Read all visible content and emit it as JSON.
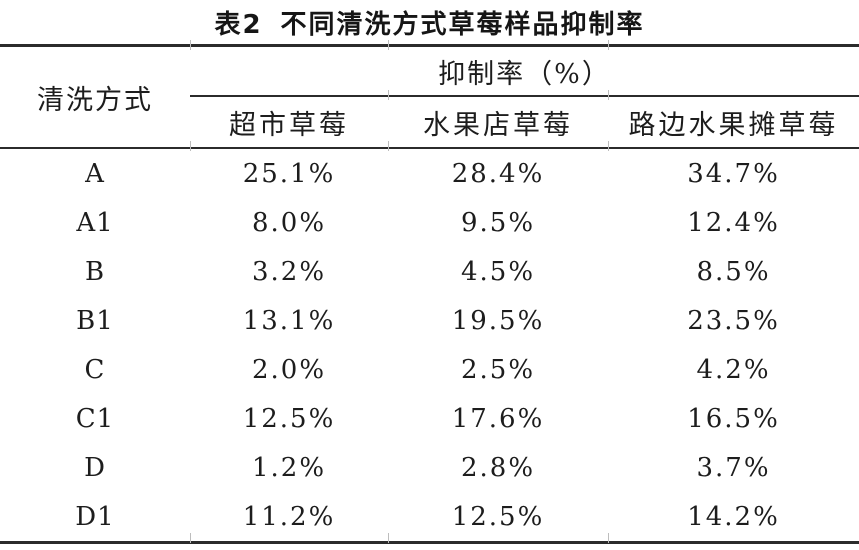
{
  "page": {
    "background_color": "#ffffff",
    "text_color": "#1d1d1d",
    "rule_color": "#2b2b2b"
  },
  "table": {
    "label": "表2",
    "title": "不同清洗方式草莓样品抑制率",
    "header": {
      "method_column": "清洗方式",
      "group": "抑制率（%）",
      "sub_columns": [
        "超市草莓",
        "水果店草莓",
        "路边水果摊草莓"
      ]
    },
    "rows": [
      {
        "method": "A",
        "values": [
          "25.1%",
          "28.4%",
          "34.7%"
        ]
      },
      {
        "method": "A1",
        "values": [
          "8.0%",
          "9.5%",
          "12.4%"
        ]
      },
      {
        "method": "B",
        "values": [
          "3.2%",
          "4.5%",
          "8.5%"
        ]
      },
      {
        "method": "B1",
        "values": [
          "13.1%",
          "19.5%",
          "23.5%"
        ]
      },
      {
        "method": "C",
        "values": [
          "2.0%",
          "2.5%",
          "4.2%"
        ]
      },
      {
        "method": "C1",
        "values": [
          "12.5%",
          "17.6%",
          "16.5%"
        ]
      },
      {
        "method": "D",
        "values": [
          "1.2%",
          "2.8%",
          "3.7%"
        ]
      },
      {
        "method": "D1",
        "values": [
          "11.2%",
          "12.5%",
          "14.2%"
        ]
      }
    ]
  },
  "chart_data": {
    "type": "table",
    "title": "表2 不同清洗方式草莓样品抑制率",
    "unit_header": "抑制率（%）",
    "columns": [
      "清洗方式",
      "超市草莓",
      "水果店草莓",
      "路边水果摊草莓"
    ],
    "rows": [
      [
        "A",
        25.1,
        28.4,
        34.7
      ],
      [
        "A1",
        8.0,
        9.5,
        12.4
      ],
      [
        "B",
        3.2,
        4.5,
        8.5
      ],
      [
        "B1",
        13.1,
        19.5,
        23.5
      ],
      [
        "C",
        2.0,
        2.5,
        4.2
      ],
      [
        "C1",
        12.5,
        17.6,
        16.5
      ],
      [
        "D",
        1.2,
        2.8,
        3.7
      ],
      [
        "D1",
        11.2,
        12.5,
        14.2
      ]
    ]
  }
}
